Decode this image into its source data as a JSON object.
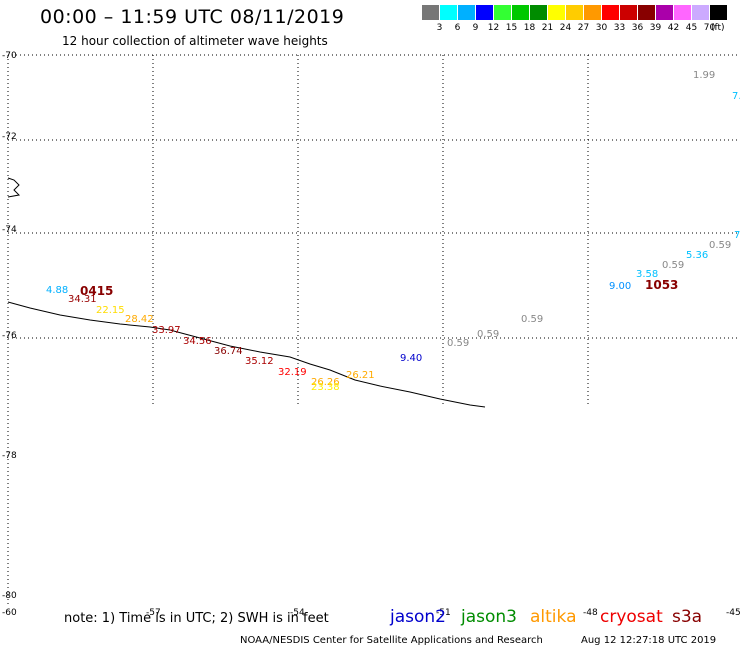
{
  "header": {
    "title": "00:00 – 11:59 UTC 08/11/2019",
    "subtitle": "12 hour collection of altimeter wave heights"
  },
  "legend": {
    "colors": [
      "#777777",
      "#00ffff",
      "#00b0ff",
      "#0000ff",
      "#33ff33",
      "#00c800",
      "#008c00",
      "#ffff00",
      "#ffcc00",
      "#ff9900",
      "#ff0000",
      "#cc0000",
      "#880000",
      "#aa00aa",
      "#ff66ff",
      "#ccaaff",
      "#000000"
    ],
    "labels": [
      "3",
      "6",
      "9",
      "12",
      "15",
      "18",
      "21",
      "24",
      "27",
      "30",
      "33",
      "36",
      "39",
      "42",
      "45",
      "70"
    ],
    "unit": "(ft)"
  },
  "axes": {
    "lat_labels": [
      "-70",
      "-72",
      "-74",
      "-76",
      "-78",
      "-80"
    ],
    "lon_labels": [
      "-60",
      "-57",
      "-54",
      "-51",
      "-48",
      "-45"
    ]
  },
  "observations": [
    {
      "text": "1.99",
      "color": "#888888"
    },
    {
      "text": "7.",
      "color": "#00c0ff"
    },
    {
      "text": "7",
      "color": "#00c0ff"
    },
    {
      "text": "0.59",
      "color": "#888888"
    },
    {
      "text": "5.36",
      "color": "#00c0ff"
    },
    {
      "text": "0.59",
      "color": "#888888"
    },
    {
      "text": "3.58",
      "color": "#00c0ff"
    },
    {
      "text": "9.00",
      "color": "#0090ff"
    },
    {
      "text": "4.88",
      "color": "#00b0ff"
    },
    {
      "text": "34.31",
      "color": "#990000"
    },
    {
      "text": "22.15",
      "color": "#ffdd00"
    },
    {
      "text": "28.42",
      "color": "#ffaa00"
    },
    {
      "text": "33.97",
      "color": "#aa0000"
    },
    {
      "text": "34.56",
      "color": "#aa0000"
    },
    {
      "text": "36.74",
      "color": "#880000"
    },
    {
      "text": "35.12",
      "color": "#aa0000"
    },
    {
      "text": "32.19",
      "color": "#ff0000"
    },
    {
      "text": "26.26",
      "color": "#ffaa00"
    },
    {
      "text": "23.38",
      "color": "#ffee00"
    },
    {
      "text": "26.21",
      "color": "#ffaa00"
    },
    {
      "text": "9.40",
      "color": "#0000cc"
    },
    {
      "text": "0.59",
      "color": "#888888"
    },
    {
      "text": "0.59",
      "color": "#888888"
    },
    {
      "text": "0.59",
      "color": "#888888"
    }
  ],
  "pass_labels": [
    {
      "text": "0415",
      "color": "#880000"
    },
    {
      "text": "1053",
      "color": "#880000"
    }
  ],
  "note": "note: 1) Time is in UTC; 2) SWH is in feet",
  "satellites": [
    {
      "name": "jason2",
      "color": "#0000cc"
    },
    {
      "name": "jason3",
      "color": "#008c00"
    },
    {
      "name": "altika",
      "color": "#ff9900"
    },
    {
      "name": "cryosat",
      "color": "#ee0000"
    },
    {
      "name": "s3a",
      "color": "#880000"
    }
  ],
  "footer": "NOAA/NESDIS Center for Satellite Applications and Research",
  "timestamp": "Aug 12 12:27:18 UTC 2019"
}
